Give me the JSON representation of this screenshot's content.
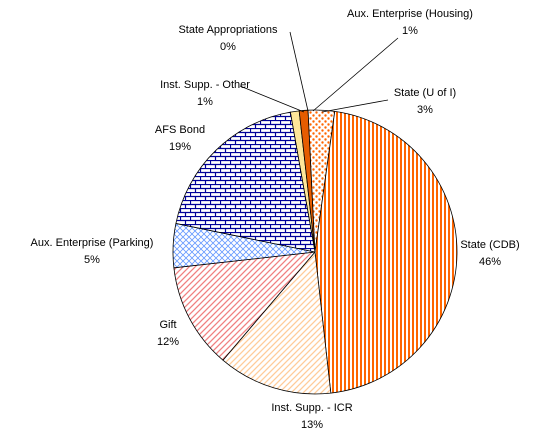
{
  "chart_data": {
    "type": "pie",
    "categories": [
      "State Appropriations",
      "Inst. Supp. - Other",
      "Aux. Enterprise (Housing)",
      "State (U of I)",
      "State (CDB)",
      "Inst. Supp. - ICR",
      "Gift",
      "Aux. Enterprise (Parking)",
      "AFS Bond"
    ],
    "values": [
      0,
      1,
      1,
      3,
      46,
      13,
      12,
      5,
      19
    ],
    "value_labels": [
      "0%",
      "1%",
      "1%",
      "3%",
      "46%",
      "13%",
      "12%",
      "5%",
      "19%"
    ],
    "colors": [
      "#ffcc66",
      "#ffe699",
      "#e65c00",
      "#ff6600",
      "#ff6600",
      "#ffcc99",
      "#f08080",
      "#6699ff",
      "#000099"
    ],
    "patterns": [
      "solid",
      "solid",
      "solid",
      "dots",
      "vertical",
      "diagonal",
      "diagonal",
      "crosshatch",
      "brick"
    ]
  }
}
